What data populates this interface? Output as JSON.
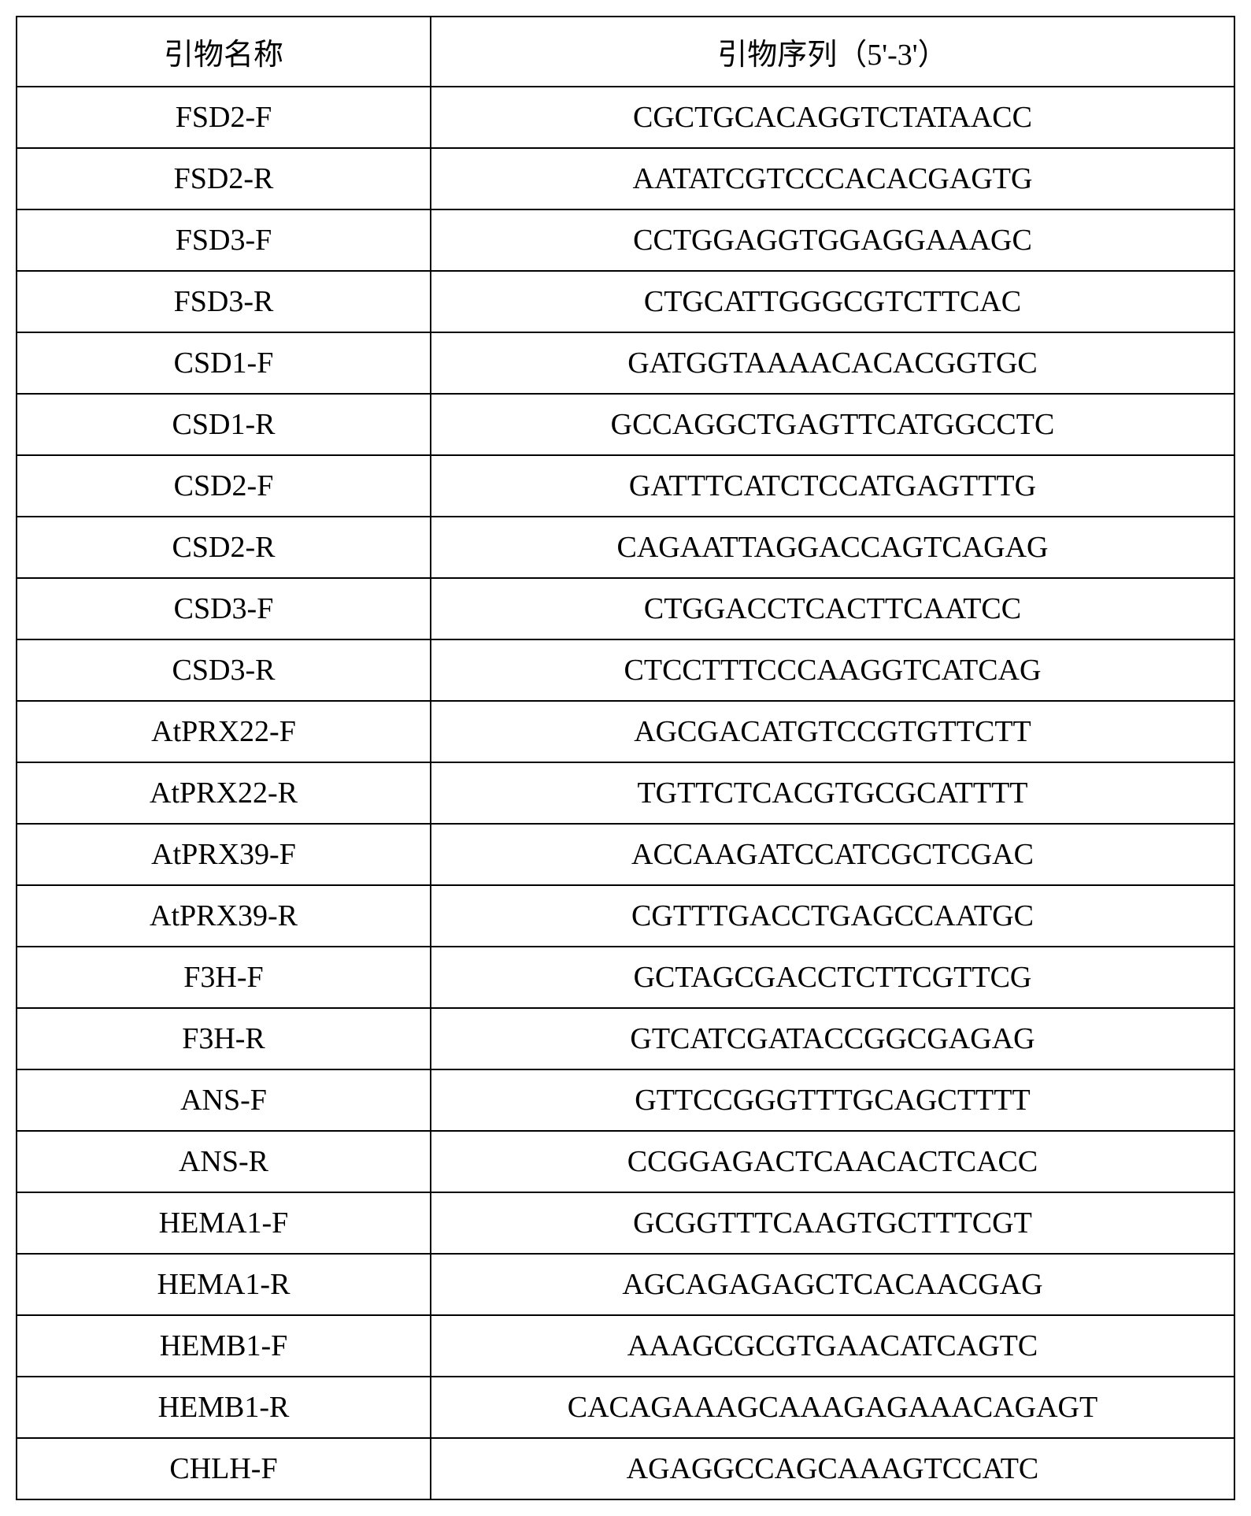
{
  "table": {
    "headers": {
      "name": "引物名称",
      "sequence": "引物序列（5'-3'）"
    },
    "rows": [
      {
        "name": "FSD2-F",
        "sequence": "CGCTGCACAGGTCTATAACC"
      },
      {
        "name": "FSD2-R",
        "sequence": "AATATCGTCCCACACGAGTG"
      },
      {
        "name": "FSD3-F",
        "sequence": "CCTGGAGGTGGAGGAAAGC"
      },
      {
        "name": "FSD3-R",
        "sequence": "CTGCATTGGGCGTCTTCAC"
      },
      {
        "name": "CSD1-F",
        "sequence": "GATGGTAAAACACACGGTGC"
      },
      {
        "name": "CSD1-R",
        "sequence": "GCCAGGCTGAGTTCATGGCCTC"
      },
      {
        "name": "CSD2-F",
        "sequence": "GATTTCATCTCCATGAGTTTG"
      },
      {
        "name": "CSD2-R",
        "sequence": "CAGAATTAGGACCAGTCAGAG"
      },
      {
        "name": "CSD3-F",
        "sequence": "CTGGACCTCACTTCAATCC"
      },
      {
        "name": "CSD3-R",
        "sequence": "CTCCTTTCCCAAGGTCATCAG"
      },
      {
        "name": "AtPRX22-F",
        "sequence": "AGCGACATGTCCGTGTTCTT"
      },
      {
        "name": "AtPRX22-R",
        "sequence": "TGTTCTCACGTGCGCATTTT"
      },
      {
        "name": "AtPRX39-F",
        "sequence": "ACCAAGATCCATCGCTCGAC"
      },
      {
        "name": "AtPRX39-R",
        "sequence": "CGTTTGACCTGAGCCAATGC"
      },
      {
        "name": "F3H-F",
        "sequence": "GCTAGCGACCTCTTCGTTCG"
      },
      {
        "name": "F3H-R",
        "sequence": "GTCATCGATACCGGCGAGAG"
      },
      {
        "name": "ANS-F",
        "sequence": "GTTCCGGGTTTGCAGCTTTT"
      },
      {
        "name": "ANS-R",
        "sequence": "CCGGAGACTCAACACTCACC"
      },
      {
        "name": "HEMA1-F",
        "sequence": "GCGGTTTCAAGTGCTTTCGT"
      },
      {
        "name": "HEMA1-R",
        "sequence": "AGCAGAGAGCTCACAACGAG"
      },
      {
        "name": "HEMB1-F",
        "sequence": "AAAGCGCGTGAACATCAGTC"
      },
      {
        "name": "HEMB1-R",
        "sequence": "CACAGAAAGCAAAGAGAAACAGAGT"
      },
      {
        "name": "CHLH-F",
        "sequence": "AGAGGCCAGCAAAGTCCATC"
      }
    ]
  }
}
